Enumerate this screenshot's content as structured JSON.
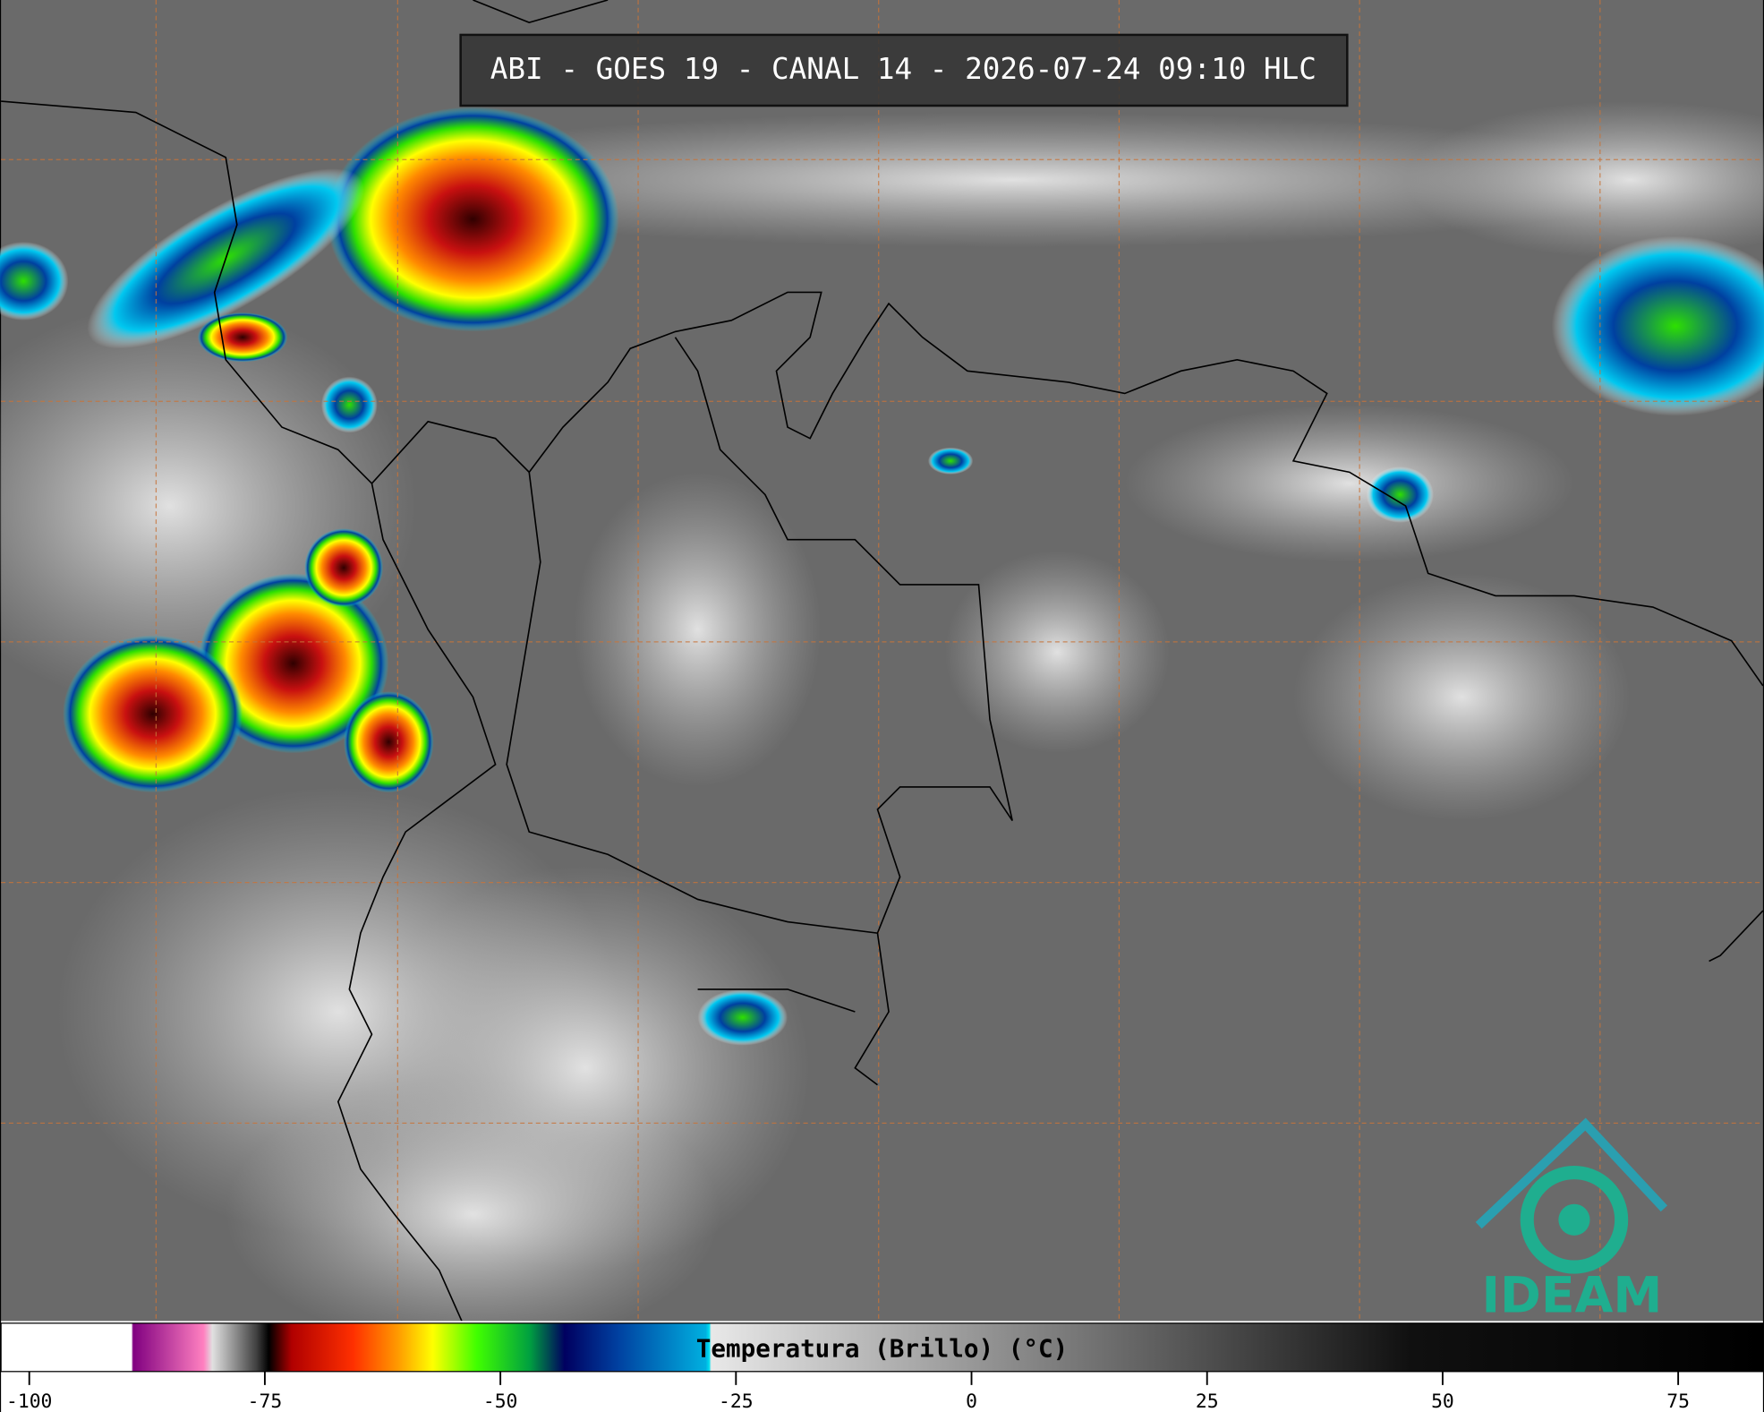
{
  "title": "ABI - GOES 19 - CANAL 14 - 2026-07-24 09:10 HLC",
  "colorbar": {
    "label": "Temperatura (Brillo) (°C)",
    "lim": [
      -103,
      84
    ],
    "ticks": [
      -100,
      -75,
      -50,
      -25,
      0,
      25,
      50,
      75
    ]
  },
  "logo": "IDEAM"
}
